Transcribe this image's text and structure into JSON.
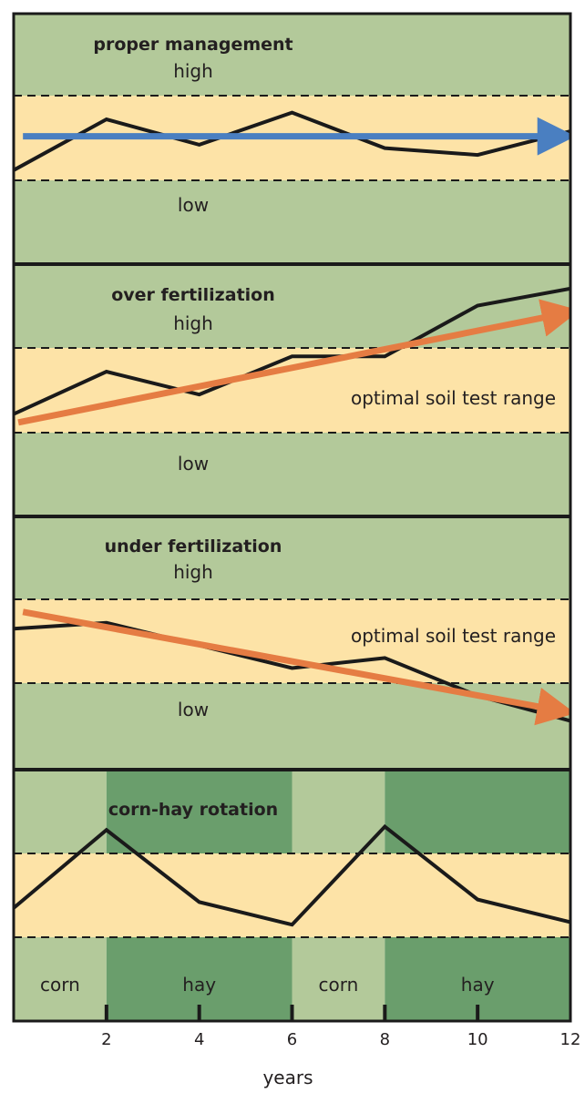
{
  "colors": {
    "band_light": "#b3c99a",
    "band_dark": "#6a9e6c",
    "optimal": "#fde3a7",
    "line": "#1a1a1a",
    "blue_arrow": "#4a7fc1",
    "orange_arrow": "#e57c43"
  },
  "chart_data": [
    {
      "type": "line",
      "title": "proper management",
      "zones": {
        "high": "high",
        "optimal": "",
        "low": "low"
      },
      "x": [
        0,
        2,
        4,
        6,
        8,
        10,
        12
      ],
      "y": [
        0.12,
        0.72,
        0.42,
        0.8,
        0.38,
        0.3,
        0.58
      ],
      "trend": {
        "from": [
          0.2,
          0.52
        ],
        "to": [
          11.7,
          0.52
        ],
        "color": "blue"
      },
      "y_scale": "optimal band spans 0 to 1"
    },
    {
      "type": "line",
      "title": "over fertilization",
      "zones": {
        "high": "high",
        "optimal": "optimal soil test range",
        "low": "low"
      },
      "x": [
        0,
        2,
        4,
        6,
        8,
        10,
        12
      ],
      "y": [
        0.22,
        0.72,
        0.45,
        0.9,
        0.9,
        1.5,
        1.7
      ],
      "trend": {
        "from": [
          0.1,
          0.12
        ],
        "to": [
          11.8,
          1.4
        ],
        "color": "orange"
      },
      "y_scale": "optimal band spans 0 to 1"
    },
    {
      "type": "line",
      "title": "under fertilization",
      "zones": {
        "high": "high",
        "optimal": "optimal soil test range",
        "low": "low"
      },
      "x": [
        0,
        2,
        4,
        6,
        8,
        10,
        12
      ],
      "y": [
        0.65,
        0.72,
        0.45,
        0.18,
        0.3,
        -0.15,
        -0.45
      ],
      "trend": {
        "from": [
          0.2,
          0.85
        ],
        "to": [
          11.7,
          -0.32
        ],
        "color": "orange"
      },
      "y_scale": "optimal band spans 0 to 1"
    },
    {
      "type": "line",
      "title": "corn-hay rotation",
      "crops": [
        {
          "label": "corn",
          "from": 0,
          "to": 2,
          "shade": "light"
        },
        {
          "label": "hay",
          "from": 2,
          "to": 6,
          "shade": "dark"
        },
        {
          "label": "corn",
          "from": 6,
          "to": 8,
          "shade": "light"
        },
        {
          "label": "hay",
          "from": 8,
          "to": 12,
          "shade": "dark"
        }
      ],
      "x": [
        0,
        2,
        4,
        6,
        8,
        10,
        12
      ],
      "y": [
        0.35,
        1.28,
        0.42,
        0.15,
        1.32,
        0.45,
        0.18
      ],
      "y_scale": "optimal band spans 0 to 1"
    }
  ],
  "x_axis": {
    "label": "years",
    "ticks": [
      "2",
      "4",
      "6",
      "8",
      "10",
      "12"
    ],
    "range": [
      0,
      12
    ]
  }
}
